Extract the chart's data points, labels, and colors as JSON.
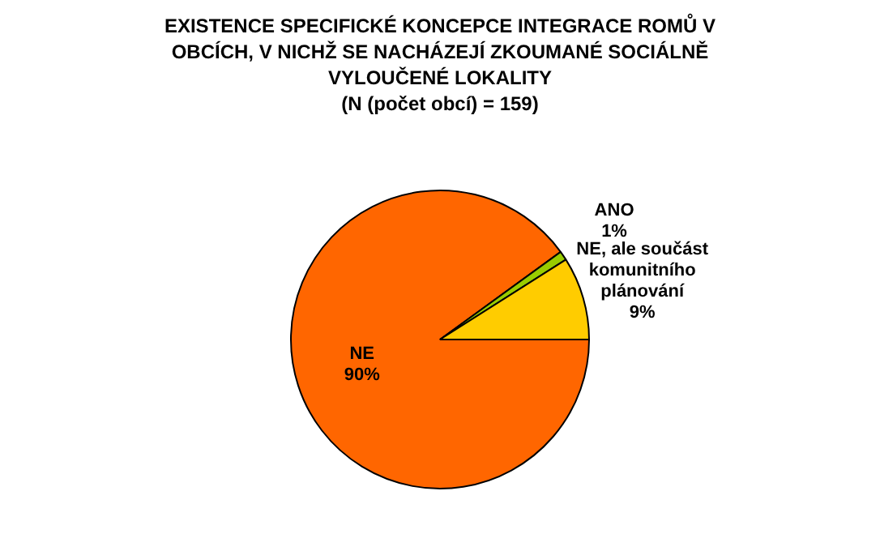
{
  "chart_data": {
    "type": "pie",
    "title": "EXISTENCE SPECIFICKÉ KONCEPCE INTEGRACE ROMŮ V OBCÍCH, V NICHŽ SE NACHÁZEJÍ ZKOUMANÉ SOCIÁLNĚ VYLOUČENÉ LOKALITY",
    "subtitle": "(N (počet obcí) = 159)",
    "categories": [
      "NE",
      "ANO",
      "NE, ale součást komunitního plánování"
    ],
    "values": [
      90,
      1,
      9
    ],
    "colors": [
      "#ff6600",
      "#99cc00",
      "#ffcc00"
    ],
    "value_labels": [
      "90%",
      "1%",
      "9%"
    ],
    "legend": false
  }
}
